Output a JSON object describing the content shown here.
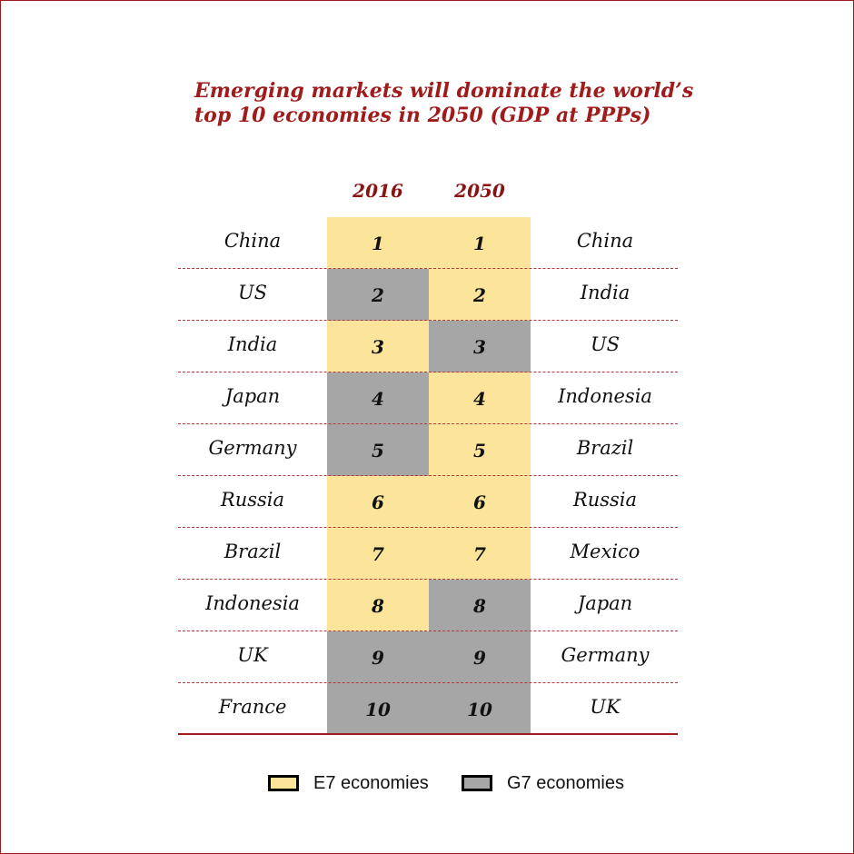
{
  "chart_data": {
    "type": "table",
    "title": "Emerging markets will dominate the world’s top 10 economies in 2050 (GDP at PPPs)",
    "columns": [
      "2016",
      "2050"
    ],
    "rows": [
      {
        "rank": "1",
        "left": "China",
        "right": "China",
        "g2016": "E7",
        "g2050": "E7"
      },
      {
        "rank": "2",
        "left": "US",
        "right": "India",
        "g2016": "G7",
        "g2050": "E7"
      },
      {
        "rank": "3",
        "left": "India",
        "right": "US",
        "g2016": "E7",
        "g2050": "G7"
      },
      {
        "rank": "4",
        "left": "Japan",
        "right": "Indonesia",
        "g2016": "G7",
        "g2050": "E7"
      },
      {
        "rank": "5",
        "left": "Germany",
        "right": "Brazil",
        "g2016": "G7",
        "g2050": "E7"
      },
      {
        "rank": "6",
        "left": "Russia",
        "right": "Russia",
        "g2016": "E7",
        "g2050": "E7"
      },
      {
        "rank": "7",
        "left": "Brazil",
        "right": "Mexico",
        "g2016": "E7",
        "g2050": "E7"
      },
      {
        "rank": "8",
        "left": "Indonesia",
        "right": "Japan",
        "g2016": "E7",
        "g2050": "G7"
      },
      {
        "rank": "9",
        "left": "UK",
        "right": "Germany",
        "g2016": "G7",
        "g2050": "G7"
      },
      {
        "rank": "10",
        "left": "France",
        "right": "UK",
        "g2016": "G7",
        "g2050": "G7"
      }
    ],
    "legend": [
      {
        "key": "E7",
        "label": "E7 economies",
        "color": "#fde49b"
      },
      {
        "key": "G7",
        "label": "G7 economies",
        "color": "#a6a6a6"
      }
    ]
  }
}
